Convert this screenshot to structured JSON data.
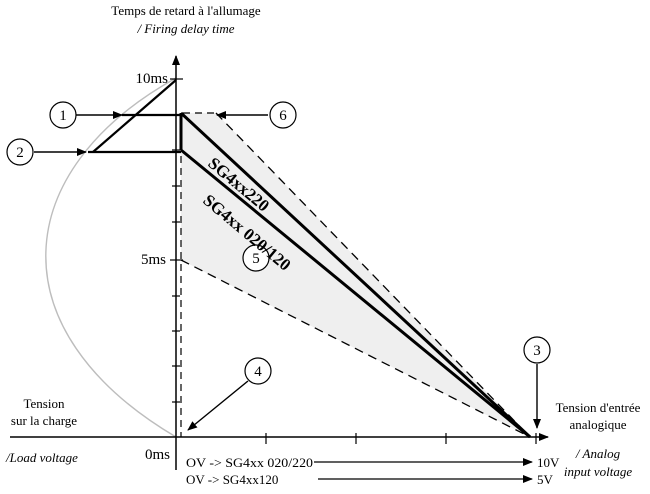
{
  "y_axis": {
    "title_fr": "Temps de retard à l'allumage",
    "title_en": "/ Firing delay time",
    "ticks": [
      "10ms",
      "5ms",
      "0ms"
    ]
  },
  "left_axis": {
    "title_fr_line1": "Tension",
    "title_fr_line2": "sur la charge",
    "title_en": "/Load voltage"
  },
  "right_axis": {
    "title_fr_line1": "Tension d'entrée",
    "title_fr_line2": "analogique",
    "title_en_line1": "/ Analog",
    "title_en_line2": "input voltage"
  },
  "series": [
    {
      "label": "SG4xx220"
    },
    {
      "label": "SG4xx 020/120"
    }
  ],
  "callouts": [
    "1",
    "2",
    "3",
    "4",
    "5",
    "6"
  ],
  "range_notes": [
    {
      "text": "OV -> SG4xx 020/220",
      "end_value": "10V"
    },
    {
      "text": "OV -> SG4xx120",
      "end_value": "5V"
    }
  ],
  "colors": {
    "line": "#000000",
    "zone_fill": "#efefef",
    "sine": "#bdbdbd"
  }
}
